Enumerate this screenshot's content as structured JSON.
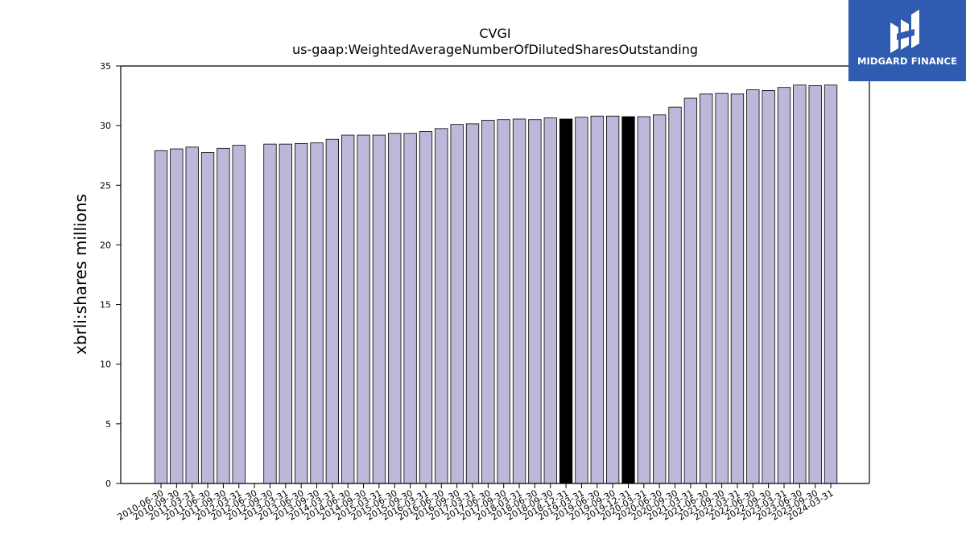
{
  "header": {
    "title": "CVGI",
    "subtitle": "us-gaap:WeightedAverageNumberOfDilutedSharesOutstanding"
  },
  "logo": {
    "text": "MIDGARD FINANCE",
    "color": "#2f5bb0"
  },
  "chart_data": {
    "type": "bar",
    "title": "CVGI",
    "subtitle": "us-gaap:WeightedAverageNumberOfDilutedSharesOutstanding",
    "xlabel": "",
    "ylabel": "xbrli:shares millions",
    "ylim": [
      0,
      35
    ],
    "yticks": [
      0,
      5,
      10,
      15,
      20,
      25,
      30,
      35
    ],
    "grid": false,
    "bar_color": "#bcb8da",
    "highlight_color": "#000000",
    "categories": [
      "2010-06-30",
      "2010-09-30",
      "2011-03-31",
      "2011-06-30",
      "2011-09-30",
      "2012-03-31",
      "2012-06-30",
      "2012-09-30",
      "2013-03-31",
      "2013-06-30",
      "2013-09-30",
      "2014-03-31",
      "2014-06-30",
      "2014-09-30",
      "2015-03-31",
      "2015-06-30",
      "2015-09-30",
      "2016-03-31",
      "2016-06-30",
      "2016-09-30",
      "2017-03-31",
      "2017-06-30",
      "2017-09-30",
      "2018-03-31",
      "2018-06-30",
      "2018-09-30",
      "2018-12-31",
      "2019-03-31",
      "2019-06-30",
      "2019-09-30",
      "2019-12-31",
      "2020-03-31",
      "2020-06-30",
      "2020-09-30",
      "2021-03-31",
      "2021-06-30",
      "2021-09-30",
      "2022-03-31",
      "2022-06-30",
      "2022-09-30",
      "2023-03-31",
      "2023-06-30",
      "2023-09-30",
      "2024-03-31"
    ],
    "values": [
      27.9,
      28.05,
      28.2,
      27.75,
      28.1,
      28.35,
      0,
      28.45,
      28.45,
      28.5,
      28.55,
      28.85,
      29.2,
      29.2,
      29.2,
      29.35,
      29.35,
      29.5,
      29.75,
      30.1,
      30.15,
      30.45,
      30.5,
      30.55,
      30.5,
      30.65,
      30.55,
      30.7,
      30.8,
      30.8,
      30.75,
      30.75,
      30.9,
      31.55,
      32.3,
      32.65,
      32.7,
      32.65,
      33.0,
      32.95,
      33.2,
      33.4,
      33.35,
      33.4
    ],
    "highlighted": [
      "2018-12-31",
      "2019-12-31"
    ]
  }
}
